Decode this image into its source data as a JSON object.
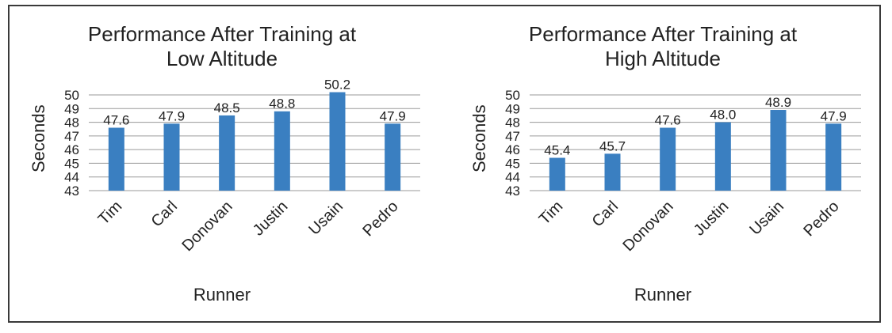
{
  "chart_data": [
    {
      "type": "bar",
      "title_lines": [
        "Performance After Training at",
        "Low Altitude"
      ],
      "xlabel": "Runner",
      "ylabel": "Seconds",
      "categories": [
        "Tim",
        "Carl",
        "Donovan",
        "Justin",
        "Usain",
        "Pedro"
      ],
      "values": [
        47.6,
        47.9,
        48.5,
        48.8,
        50.2,
        47.9
      ],
      "value_labels": [
        "47.6",
        "47.9",
        "48.5",
        "48.8",
        "50.2",
        "47.9"
      ],
      "ylim": [
        43,
        50
      ],
      "yticks": [
        43,
        44,
        45,
        46,
        47,
        48,
        49,
        50
      ],
      "grid": true,
      "bar_color": "#3a7fc1"
    },
    {
      "type": "bar",
      "title_lines": [
        "Performance After Training at",
        "High Altitude"
      ],
      "xlabel": "Runner",
      "ylabel": "Seconds",
      "categories": [
        "Tim",
        "Carl",
        "Donovan",
        "Justin",
        "Usain",
        "Pedro"
      ],
      "values": [
        45.4,
        45.7,
        47.6,
        48.0,
        48.9,
        47.9
      ],
      "value_labels": [
        "45.4",
        "45.7",
        "47.6",
        "48.0",
        "48.9",
        "47.9"
      ],
      "ylim": [
        43,
        50
      ],
      "yticks": [
        43,
        44,
        45,
        46,
        47,
        48,
        49,
        50
      ],
      "grid": true,
      "bar_color": "#3a7fc1"
    }
  ]
}
